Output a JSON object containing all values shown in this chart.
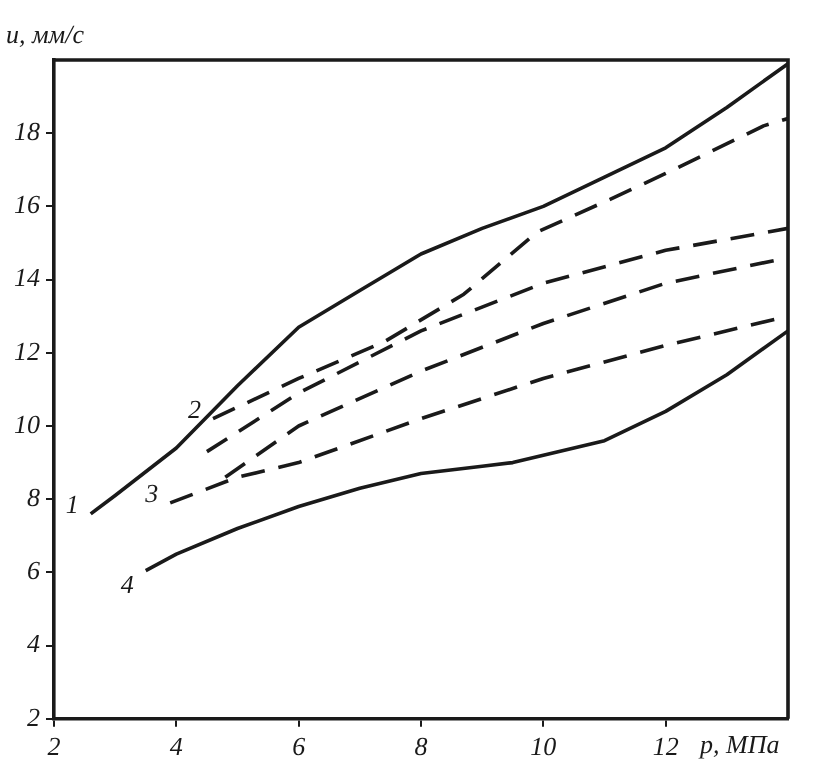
{
  "chart_data": {
    "type": "line",
    "xlabel": "p, МПа",
    "ylabel": "u, мм/с",
    "xlim": [
      2,
      14
    ],
    "ylim": [
      2,
      20
    ],
    "xticks": [
      2,
      4,
      6,
      8,
      10,
      12
    ],
    "yticks": [
      2,
      4,
      6,
      8,
      10,
      12,
      14,
      16,
      18
    ],
    "grid": false,
    "legend": false,
    "marker": "none",
    "series": [
      {
        "name": "1",
        "color": "#1a1a1a",
        "line_style": "solid",
        "x": [
          2.6,
          3,
          4,
          5,
          6,
          7,
          7.5,
          8,
          9,
          10,
          11,
          12,
          13,
          14
        ],
        "values": [
          7.6,
          8.1,
          9.4,
          11.1,
          12.7,
          13.7,
          14.2,
          14.7,
          15.4,
          16.0,
          16.8,
          17.6,
          18.7,
          19.9
        ]
      },
      {
        "name": "2",
        "color": "#1a1a1a",
        "line_style": "dashed",
        "x": [
          4.6,
          6,
          7.4,
          8.7,
          9.9,
          11.1,
          12,
          13.6,
          14
        ],
        "values": [
          10.2,
          11.3,
          12.3,
          13.6,
          15.3,
          16.2,
          16.9,
          18.2,
          18.4
        ]
      },
      {
        "color": "#1a1a1a",
        "line_style": "dashed",
        "x": [
          4.5,
          6,
          8,
          10,
          12,
          14
        ],
        "values": [
          9.3,
          10.9,
          12.6,
          13.9,
          14.8,
          15.4
        ]
      },
      {
        "color": "#1a1a1a",
        "line_style": "dashed",
        "x": [
          4.8,
          6,
          8,
          10,
          12,
          14
        ],
        "values": [
          8.6,
          10.0,
          11.5,
          12.8,
          13.9,
          14.6
        ]
      },
      {
        "name": "3",
        "color": "#1a1a1a",
        "line_style": "dashed",
        "x": [
          3.9,
          5,
          6,
          8,
          10,
          12,
          14
        ],
        "values": [
          7.9,
          8.6,
          9.0,
          10.2,
          11.3,
          12.2,
          13.0
        ]
      },
      {
        "name": "4",
        "color": "#1a1a1a",
        "line_style": "solid",
        "x": [
          3.5,
          4,
          5,
          6,
          7,
          8,
          9,
          9.5,
          10,
          11,
          12,
          13,
          14
        ],
        "values": [
          6.05,
          6.5,
          7.2,
          7.8,
          8.3,
          8.7,
          8.9,
          9.0,
          9.2,
          9.6,
          10.4,
          11.4,
          12.6
        ]
      }
    ]
  }
}
